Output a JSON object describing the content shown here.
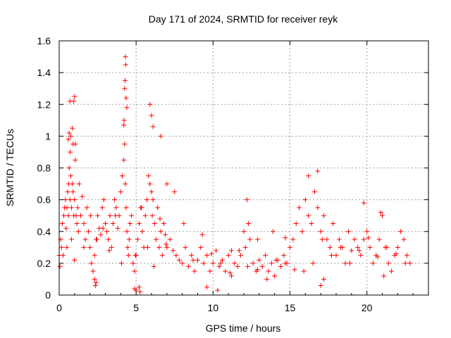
{
  "chart_data": {
    "type": "scatter",
    "title": "Day 171 of 2024, SRMTID for receiver reyk",
    "xlabel": "GPS time / hours",
    "ylabel": "SRMTID / TECUs",
    "xlim": [
      0,
      24
    ],
    "ylim": [
      0,
      1.6
    ],
    "x_ticks": [
      0,
      5,
      10,
      15,
      20
    ],
    "x_tick_labels": [
      "0",
      "5",
      "10",
      "15",
      "20"
    ],
    "y_ticks": [
      0,
      0.2,
      0.4,
      0.6,
      0.8,
      1,
      1.2,
      1.4,
      1.6
    ],
    "y_tick_labels": [
      "0",
      "0.2",
      "0.4",
      "0.6",
      "0.8",
      "1",
      "1.2",
      "1.4",
      "1.6"
    ],
    "grid": true,
    "marker": "+",
    "series": [
      {
        "name": "SRMTID",
        "color": "#ff0000",
        "x": [
          0.0,
          0.1,
          0.15,
          0.2,
          0.3,
          0.35,
          0.4,
          0.45,
          0.5,
          0.55,
          0.6,
          0.62,
          0.65,
          0.7,
          0.72,
          0.75,
          0.8,
          0.85,
          0.9,
          0.95,
          1.0,
          1.05,
          1.1,
          1.15,
          1.2,
          1.3,
          1.4,
          1.5,
          1.6,
          1.7,
          1.8,
          1.9,
          2.0,
          2.1,
          2.2,
          2.3,
          2.4,
          2.5,
          2.6,
          2.7,
          2.8,
          2.9,
          3.0,
          3.1,
          3.2,
          3.3,
          3.4,
          3.5,
          3.6,
          3.7,
          3.8,
          3.9,
          4.0,
          4.1,
          4.2,
          4.25,
          4.3,
          4.35,
          4.4,
          4.45,
          4.5,
          4.6,
          4.7,
          4.8,
          4.9,
          5.0,
          5.1,
          5.2,
          5.3,
          5.4,
          5.5,
          5.6,
          5.7,
          5.8,
          5.9,
          6.0,
          6.05,
          6.1,
          6.2,
          6.3,
          6.4,
          6.5,
          6.6,
          6.7,
          6.8,
          6.9,
          7.0,
          7.2,
          7.4,
          7.6,
          7.8,
          8.0,
          8.2,
          8.4,
          8.6,
          8.8,
          9.0,
          9.2,
          9.4,
          9.6,
          9.8,
          10.0,
          10.2,
          10.4,
          10.6,
          10.8,
          11.0,
          11.2,
          11.4,
          11.6,
          11.8,
          12.0,
          12.1,
          12.2,
          12.3,
          12.4,
          12.6,
          12.8,
          13.0,
          13.2,
          13.4,
          13.6,
          13.8,
          14.0,
          14.2,
          14.4,
          14.6,
          14.8,
          15.0,
          15.2,
          15.4,
          15.6,
          15.8,
          16.0,
          16.2,
          16.4,
          16.6,
          16.8,
          17.0,
          17.2,
          17.4,
          17.6,
          17.8,
          18.0,
          18.2,
          18.4,
          18.6,
          18.8,
          19.0,
          19.2,
          19.4,
          19.6,
          19.8,
          20.0,
          20.2,
          20.4,
          20.6,
          20.8,
          21.0,
          21.2,
          21.4,
          21.6,
          21.8,
          22.0,
          22.2,
          22.4,
          22.6,
          22.8,
          0.05,
          0.25,
          0.5,
          0.8,
          1.0,
          1.25,
          1.6,
          2.05,
          2.45,
          2.85,
          3.25,
          3.65,
          4.05,
          4.55,
          4.95,
          5.35,
          5.75,
          6.15,
          6.55,
          6.95,
          7.5,
          8.1,
          8.7,
          9.3,
          9.9,
          10.5,
          11.1,
          11.7,
          12.25,
          12.9,
          13.5,
          14.1,
          14.7,
          15.3,
          15.9,
          16.5,
          17.1,
          17.7,
          18.3,
          18.9,
          19.5,
          20.1,
          20.7,
          21.3,
          21.9,
          22.5,
          0.85,
          0.9,
          0.95,
          1.0,
          4.3,
          4.32,
          4.35,
          4.4,
          5.9,
          6.0,
          6.1,
          0.7,
          0.75,
          0.6,
          0.65,
          4.2,
          4.22,
          4.25,
          4.28,
          1.05,
          2.3,
          2.35,
          2.4,
          4.9,
          5.0,
          5.2,
          5.25,
          6.6,
          7.0,
          9.6,
          10.3,
          11.2,
          12.9,
          13.9,
          14.7,
          16.2,
          16.8,
          17.0,
          17.2,
          19.8,
          20.9,
          21.1
        ],
        "y": [
          0.25,
          0.35,
          0.3,
          0.45,
          0.5,
          0.55,
          0.6,
          0.42,
          0.55,
          0.65,
          0.5,
          0.7,
          0.8,
          0.6,
          0.9,
          0.75,
          0.55,
          0.7,
          0.65,
          0.5,
          0.6,
          0.85,
          0.5,
          0.45,
          0.55,
          0.7,
          0.5,
          0.62,
          0.45,
          0.35,
          0.55,
          0.4,
          0.3,
          0.2,
          0.15,
          0.25,
          0.35,
          0.5,
          0.42,
          0.38,
          0.55,
          0.6,
          0.45,
          0.4,
          0.35,
          0.5,
          0.3,
          0.45,
          0.6,
          0.55,
          0.42,
          0.5,
          0.65,
          0.75,
          0.85,
          0.95,
          0.7,
          0.55,
          0.4,
          0.3,
          0.25,
          0.45,
          0.5,
          0.2,
          0.15,
          0.25,
          0.35,
          0.45,
          0.55,
          0.4,
          0.3,
          0.5,
          0.6,
          0.75,
          0.7,
          0.65,
          0.5,
          0.6,
          0.45,
          0.35,
          0.55,
          0.3,
          0.4,
          0.25,
          0.45,
          0.38,
          0.3,
          0.35,
          0.28,
          0.25,
          0.22,
          0.2,
          0.3,
          0.18,
          0.25,
          0.15,
          0.22,
          0.3,
          0.2,
          0.25,
          0.15,
          0.2,
          0.28,
          0.18,
          0.22,
          0.15,
          0.25,
          0.12,
          0.2,
          0.18,
          0.25,
          0.4,
          0.3,
          0.6,
          0.45,
          0.35,
          0.2,
          0.15,
          0.22,
          0.18,
          0.25,
          0.15,
          0.2,
          0.12,
          0.22,
          0.18,
          0.25,
          0.2,
          0.3,
          0.35,
          0.45,
          0.55,
          0.4,
          0.6,
          0.5,
          0.45,
          0.65,
          0.55,
          0.4,
          0.5,
          0.35,
          0.3,
          0.45,
          0.25,
          0.35,
          0.3,
          0.2,
          0.4,
          0.28,
          0.35,
          0.3,
          0.25,
          0.35,
          0.4,
          0.3,
          0.2,
          0.25,
          0.35,
          0.5,
          0.3,
          0.2,
          0.15,
          0.25,
          0.3,
          0.4,
          0.35,
          0.25,
          0.2,
          0.18,
          0.25,
          0.3,
          0.35,
          0.22,
          0.4,
          0.3,
          0.5,
          0.35,
          0.42,
          0.28,
          0.5,
          0.2,
          0.35,
          0.25,
          0.55,
          0.3,
          0.18,
          0.48,
          0.32,
          0.65,
          0.45,
          0.22,
          0.38,
          0.26,
          0.2,
          0.14,
          0.28,
          0.18,
          0.16,
          0.1,
          0.22,
          0.2,
          0.16,
          0.15,
          0.2,
          0.35,
          0.25,
          0.3,
          0.2,
          0.28,
          0.36,
          0.24,
          0.3,
          0.26,
          0.2,
          1.05,
          0.95,
          1.22,
          1.25,
          1.5,
          1.45,
          1.24,
          1.18,
          1.2,
          1.13,
          1.06,
          1.22,
          1.0,
          0.98,
          1.02,
          1.07,
          1.1,
          1.3,
          1.35,
          0.95,
          0.1,
          0.06,
          0.08,
          0.04,
          0.03,
          0.05,
          0.02,
          1.0,
          0.7,
          0.05,
          0.03,
          0.28,
          0.35,
          0.4,
          0.36,
          0.75,
          0.78,
          0.06,
          0.1,
          0.58,
          0.52,
          0.12
        ]
      }
    ]
  }
}
